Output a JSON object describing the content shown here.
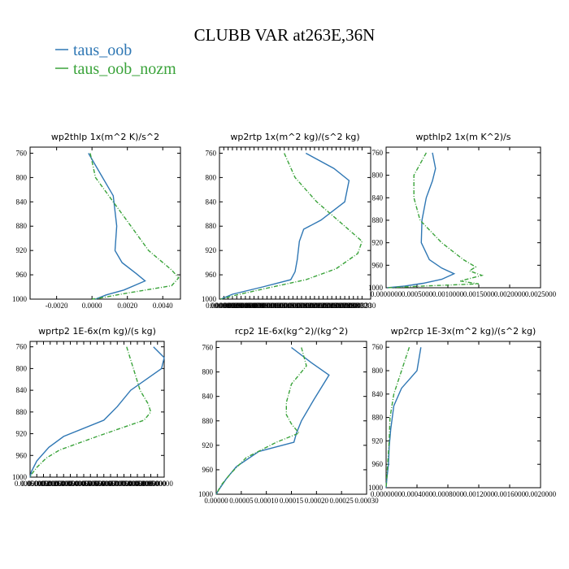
{
  "figure": {
    "title": "CLUBB VAR at263E,36N",
    "legend": [
      {
        "name": "taus_oob",
        "color": "#2f77b4"
      },
      {
        "name": "taus_oob_nozm",
        "color": "#3aa33a"
      }
    ]
  },
  "chart_data": [
    {
      "type": "line",
      "title": "wp2thlp  1x(m^2 K)/s^2",
      "xlim": [
        -0.0035,
        0.005
      ],
      "ylim": [
        1000,
        750
      ],
      "x_ticks": [
        "-0.0020",
        "0.0000",
        "0.0020",
        "0.0040"
      ],
      "x_tick_values": [
        -0.002,
        0,
        0.002,
        0.004
      ],
      "y_ticks": [
        "760",
        "800",
        "840",
        "880",
        "920",
        "960",
        "1000"
      ],
      "series": [
        {
          "name": "taus_oob",
          "color": "#2f77b4",
          "dash": "",
          "points": [
            [
              -0.0002,
              760
            ],
            [
              0.0006,
              800
            ],
            [
              0.0012,
              830
            ],
            [
              0.0014,
              880
            ],
            [
              0.0013,
              920
            ],
            [
              0.0017,
              940
            ],
            [
              0.0025,
              958
            ],
            [
              0.003,
              970
            ],
            [
              0.0018,
              985
            ],
            [
              0.0008,
              993
            ],
            [
              0.0002,
              1000
            ]
          ]
        },
        {
          "name": "taus_oob_nozm",
          "color": "#3aa33a",
          "dash": "5,2,1,2",
          "points": [
            [
              -0.0001,
              760
            ],
            [
              0.0002,
              800
            ],
            [
              0.0012,
              840
            ],
            [
              0.0022,
              880
            ],
            [
              0.0032,
              920
            ],
            [
              0.0045,
              952
            ],
            [
              0.0049,
              965
            ],
            [
              0.0045,
              978
            ],
            [
              0.002,
              990
            ],
            [
              0.0005,
              998
            ],
            [
              0.0,
              1000
            ]
          ]
        }
      ]
    },
    {
      "type": "line",
      "title": "wp2rtp  1x(m^2 kg)/(s^2 kg)",
      "xlim": [
        0,
        0.00035
      ],
      "ylim": [
        1000,
        750
      ],
      "x_ticks": [
        "0.000000",
        "0.000010",
        "0.000020",
        "0.000030",
        "0.000040",
        "0.000050",
        "0.000060",
        "0.000070",
        "0.000080",
        "0.000090",
        "0.000100",
        "0.000110",
        "0.000120",
        "0.000130",
        "0.000140",
        "0.000150",
        "0.000160",
        "0.000170",
        "0.000180",
        "0.000190",
        "0.000200",
        "0.000210",
        "0.000220",
        "0.000230",
        "0.000240",
        "0.000250",
        "0.000260",
        "0.000270",
        "0.000280",
        "0.000290",
        "0.000300",
        "0.000310",
        "0.000320",
        "0.000330"
      ],
      "x_tick_values": [
        0,
        1e-05,
        2e-05,
        3e-05,
        4e-05,
        5e-05,
        6e-05,
        7e-05,
        8e-05,
        9e-05,
        0.0001,
        0.00011,
        0.00012,
        0.00013,
        0.00014,
        0.00015,
        0.00016,
        0.00017,
        0.00018,
        0.00019,
        0.0002,
        0.00021,
        0.00022,
        0.00023,
        0.00024,
        0.00025,
        0.00026,
        0.00027,
        0.00028,
        0.00029,
        0.0003,
        0.00031,
        0.00032,
        0.00033
      ],
      "y_ticks": [
        "760",
        "800",
        "840",
        "880",
        "920",
        "960",
        "1000"
      ],
      "series": [
        {
          "name": "taus_oob",
          "color": "#2f77b4",
          "dash": "",
          "points": [
            [
              0.0002,
              760
            ],
            [
              0.000265,
              785
            ],
            [
              0.0003,
              805
            ],
            [
              0.00029,
              840
            ],
            [
              0.000235,
              870
            ],
            [
              0.000195,
              885
            ],
            [
              0.000185,
              905
            ],
            [
              0.00018,
              935
            ],
            [
              0.000175,
              955
            ],
            [
              0.000165,
              968
            ],
            [
              0.0001,
              980
            ],
            [
              3e-05,
              992
            ],
            [
              3e-06,
              1000
            ]
          ]
        },
        {
          "name": "taus_oob_nozm",
          "color": "#3aa33a",
          "dash": "5,2,1,2",
          "points": [
            [
              0.00015,
              760
            ],
            [
              0.000175,
              800
            ],
            [
              0.000225,
              840
            ],
            [
              0.00029,
              880
            ],
            [
              0.00033,
              905
            ],
            [
              0.00032,
              925
            ],
            [
              0.00027,
              950
            ],
            [
              0.0002,
              968
            ],
            [
              0.00011,
              982
            ],
            [
              4e-05,
              993
            ],
            [
              3e-06,
              1000
            ]
          ]
        }
      ]
    },
    {
      "type": "line",
      "title": "wpthlp2  1x(m K^2)/s",
      "xlim": [
        0,
        0.0025
      ],
      "ylim": [
        1000,
        750
      ],
      "x_ticks": [
        "0.0000000",
        "0.0005000",
        "0.0010000",
        "0.0015000",
        "0.0020000",
        "0.0025000"
      ],
      "x_tick_values": [
        0,
        0.0005,
        0.001,
        0.0015,
        0.002,
        0.0025
      ],
      "y_ticks": [
        "760",
        "800",
        "840",
        "880",
        "920",
        "960",
        "1000"
      ],
      "series": [
        {
          "name": "taus_oob",
          "color": "#2f77b4",
          "dash": "",
          "points": [
            [
              0.00075,
              760
            ],
            [
              0.0008,
              788
            ],
            [
              0.00075,
              810
            ],
            [
              0.00065,
              840
            ],
            [
              0.00058,
              880
            ],
            [
              0.00057,
              920
            ],
            [
              0.0007,
              950
            ],
            [
              0.0009,
              965
            ],
            [
              0.0011,
              975
            ],
            [
              0.0009,
              985
            ],
            [
              0.0006,
              992
            ],
            [
              0.0003,
              997
            ],
            [
              2e-05,
              1000
            ]
          ]
        },
        {
          "name": "taus_oob_nozm",
          "color": "#3aa33a",
          "dash": "5,2,1,2",
          "points": [
            [
              0.00065,
              760
            ],
            [
              0.00045,
              800
            ],
            [
              0.00045,
              840
            ],
            [
              0.00055,
              880
            ],
            [
              0.0009,
              920
            ],
            [
              0.00125,
              950
            ],
            [
              0.00145,
              963
            ],
            [
              0.00135,
              970
            ],
            [
              0.00155,
              978
            ],
            [
              0.0012,
              988
            ],
            [
              0.0015,
              993
            ],
            [
              0.0006,
              997
            ],
            [
              2e-05,
              1000
            ]
          ]
        }
      ]
    },
    {
      "type": "line",
      "title": "wprtp2  1E-6x(m kg)/(s kg)",
      "xlim": [
        0,
        1.0
      ],
      "ylim": [
        1000,
        750
      ],
      "x_ticks": [
        "0.0000000",
        "0.0500000",
        "0.1000000",
        "0.1500000",
        "0.2000000",
        "0.2500000",
        "0.3000000",
        "0.3500000",
        "0.4000000",
        "0.4500000",
        "0.5000000",
        "0.5500000",
        "0.6000000",
        "0.6500000",
        "0.7000000",
        "0.7500000",
        "0.8000000",
        "0.8500000",
        "0.9000000",
        "0.9500000"
      ],
      "x_tick_values": [
        0,
        0.05,
        0.1,
        0.15,
        0.2,
        0.25,
        0.3,
        0.35,
        0.4,
        0.45,
        0.5,
        0.55,
        0.6,
        0.65,
        0.7,
        0.75,
        0.8,
        0.85,
        0.9,
        0.95
      ],
      "y_ticks": [
        "760",
        "800",
        "840",
        "880",
        "920",
        "960",
        "1000"
      ],
      "series": [
        {
          "name": "taus_oob",
          "color": "#2f77b4",
          "dash": "",
          "points": [
            [
              0.92,
              760
            ],
            [
              1.0,
              780
            ],
            [
              0.98,
              800
            ],
            [
              0.75,
              840
            ],
            [
              0.65,
              870
            ],
            [
              0.55,
              895
            ],
            [
              0.25,
              925
            ],
            [
              0.14,
              945
            ],
            [
              0.05,
              970
            ],
            [
              0.01,
              990
            ],
            [
              0.0,
              1000
            ]
          ]
        },
        {
          "name": "taus_oob_nozm",
          "color": "#3aa33a",
          "dash": "5,2,1,2",
          "points": [
            [
              0.72,
              760
            ],
            [
              0.77,
              800
            ],
            [
              0.82,
              840
            ],
            [
              0.88,
              865
            ],
            [
              0.9,
              880
            ],
            [
              0.85,
              895
            ],
            [
              0.5,
              925
            ],
            [
              0.22,
              950
            ],
            [
              0.12,
              965
            ],
            [
              0.05,
              982
            ],
            [
              0.01,
              995
            ],
            [
              0.0,
              1000
            ]
          ]
        }
      ]
    },
    {
      "type": "line",
      "title": "rcp2  1E-6x(kg^2)/(kg^2)",
      "xlim": [
        0,
        0.0003
      ],
      "ylim": [
        1000,
        750
      ],
      "x_ticks": [
        "0.00000",
        "0.00005",
        "0.00010",
        "0.00015",
        "0.00020",
        "0.00025",
        "0.00030"
      ],
      "x_tick_values": [
        0,
        5e-05,
        0.0001,
        0.00015,
        0.0002,
        0.00025,
        0.0003
      ],
      "y_ticks": [
        "760",
        "800",
        "840",
        "880",
        "920",
        "960",
        "1000"
      ],
      "series": [
        {
          "name": "taus_oob",
          "color": "#2f77b4",
          "dash": "",
          "points": [
            [
              0.00015,
              760
            ],
            [
              0.00019,
              785
            ],
            [
              0.000225,
              805
            ],
            [
              0.000195,
              845
            ],
            [
              0.00017,
              880
            ],
            [
              0.00016,
              900
            ],
            [
              0.000155,
              915
            ],
            [
              8.5e-05,
              930
            ],
            [
              4e-05,
              955
            ],
            [
              2e-05,
              975
            ],
            [
              5e-06,
              993
            ],
            [
              0.0,
              1000
            ]
          ]
        },
        {
          "name": "taus_oob_nozm",
          "color": "#3aa33a",
          "dash": "5,2,1,2",
          "points": [
            [
              0.00017,
              760
            ],
            [
              0.00018,
              790
            ],
            [
              0.00015,
              820
            ],
            [
              0.00014,
              850
            ],
            [
              0.00014,
              870
            ],
            [
              0.00015,
              885
            ],
            [
              0.000165,
              900
            ],
            [
              0.00012,
              915
            ],
            [
              6e-05,
              940
            ],
            [
              3e-05,
              965
            ],
            [
              1e-05,
              985
            ],
            [
              0.0,
              1000
            ]
          ]
        }
      ]
    },
    {
      "type": "line",
      "title": "wp2rcp  1E-3x(m^2 kg)/(s^2 kg)",
      "xlim": [
        0,
        0.002
      ],
      "ylim": [
        1000,
        750
      ],
      "x_ticks": [
        "0.0000000",
        "0.0004000",
        "0.0008000",
        "0.0012000",
        "0.0016000",
        "0.0020000"
      ],
      "x_tick_values": [
        0,
        0.0004,
        0.0008,
        0.0012,
        0.0016,
        0.002
      ],
      "y_ticks": [
        "760",
        "800",
        "840",
        "880",
        "920",
        "960",
        "1000"
      ],
      "series": [
        {
          "name": "taus_oob",
          "color": "#2f77b4",
          "dash": "",
          "points": [
            [
              0.00045,
              760
            ],
            [
              0.0004,
              800
            ],
            [
              0.0002,
              830
            ],
            [
              0.0001,
              860
            ],
            [
              6e-05,
              900
            ],
            [
              4e-05,
              930
            ],
            [
              3e-05,
              960
            ],
            [
              1e-05,
              985
            ],
            [
              0.0,
              1000
            ]
          ]
        },
        {
          "name": "taus_oob_nozm",
          "color": "#3aa33a",
          "dash": "5,2,1,2",
          "points": [
            [
              0.0003,
              760
            ],
            [
              0.0002,
              800
            ],
            [
              0.0001,
              840
            ],
            [
              5e-05,
              880
            ],
            [
              4e-05,
              920
            ],
            [
              2e-05,
              960
            ],
            [
              0.0,
              1000
            ]
          ]
        }
      ]
    }
  ]
}
